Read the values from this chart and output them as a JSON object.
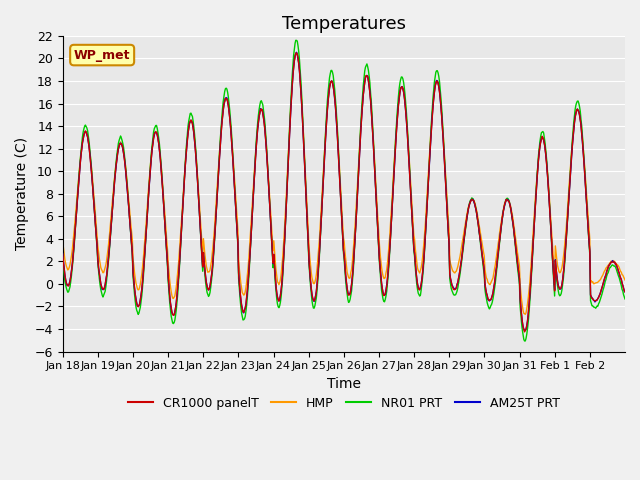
{
  "title": "Temperatures",
  "ylabel": "Temperature (C)",
  "xlabel": "Time",
  "annotation": "WP_met",
  "ylim": [
    -6,
    22
  ],
  "yticks": [
    -6,
    -4,
    -2,
    0,
    2,
    4,
    6,
    8,
    10,
    12,
    14,
    16,
    18,
    20,
    22
  ],
  "xtick_labels": [
    "Jan 18",
    "Jan 19",
    "Jan 20",
    "Jan 21",
    "Jan 22",
    "Jan 23",
    "Jan 24",
    "Jan 25",
    "Jan 26",
    "Jan 27",
    "Jan 28",
    "Jan 29",
    "Jan 30",
    "Jan 31",
    "Feb 1",
    "Feb 2"
  ],
  "legend_labels": [
    "CR1000 panelT",
    "HMP",
    "NR01 PRT",
    "AM25T PRT"
  ],
  "line_colors": [
    "#cc0000",
    "#ff9900",
    "#00cc00",
    "#0000cc"
  ],
  "plot_bg_color": "#e8e8e8",
  "title_fontsize": 13,
  "axis_fontsize": 10,
  "tick_fontsize": 9,
  "n_days": 16,
  "n_points_per_day": 48
}
